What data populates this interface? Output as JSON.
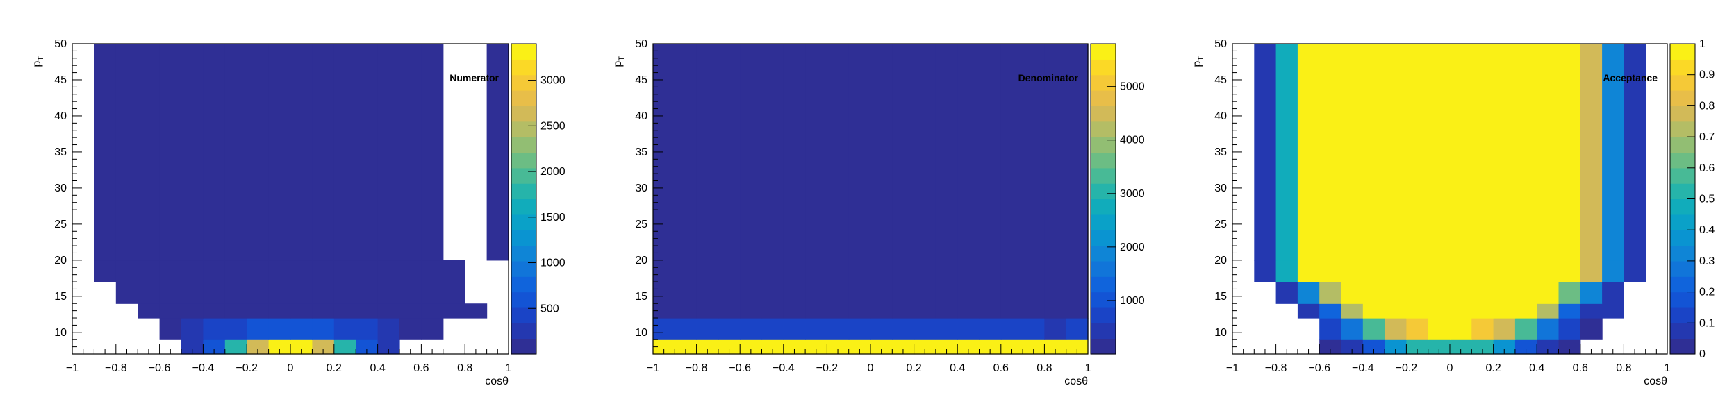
{
  "chart_data": [
    {
      "type": "heatmap",
      "title": "Numerator",
      "xlabel": "cosθ",
      "ylabel": "p_T",
      "xlim": [
        -1,
        1
      ],
      "ylim": [
        7,
        50
      ],
      "x_ticks": [
        "−1",
        "−0.8",
        "−0.6",
        "−0.4",
        "−0.2",
        "0",
        "0.2",
        "0.4",
        "0.6",
        "0.8",
        "1"
      ],
      "y_ticks": [
        "10",
        "15",
        "20",
        "25",
        "30",
        "35",
        "40",
        "45",
        "50"
      ],
      "x_bin_edges": [
        -1,
        -0.9,
        -0.8,
        -0.7,
        -0.6,
        -0.5,
        -0.4,
        -0.3,
        -0.2,
        -0.1,
        0,
        0.1,
        0.2,
        0.3,
        0.4,
        0.5,
        0.6,
        0.7,
        0.8,
        0.9,
        1
      ],
      "y_bin_edges": [
        7,
        9,
        12,
        14,
        17,
        20,
        50
      ],
      "z_range": [
        0,
        3400
      ],
      "colorbar_ticks": [
        {
          "value": 500,
          "label": "500"
        },
        {
          "value": 1000,
          "label": "1000"
        },
        {
          "value": 1500,
          "label": "1500"
        },
        {
          "value": 2000,
          "label": "2000"
        },
        {
          "value": 2500,
          "label": "2500"
        },
        {
          "value": 3000,
          "label": "3000"
        }
      ],
      "z": [
        [
          0,
          0,
          0,
          0,
          0,
          300,
          600,
          1700,
          2600,
          3400,
          3400,
          2600,
          1700,
          600,
          300,
          0,
          0,
          0,
          0,
          0
        ],
        [
          0,
          0,
          0,
          0,
          100,
          250,
          350,
          450,
          550,
          600,
          600,
          550,
          450,
          350,
          250,
          100,
          100,
          0,
          0,
          0
        ],
        [
          0,
          0,
          0,
          80,
          80,
          80,
          80,
          80,
          80,
          80,
          80,
          80,
          80,
          80,
          80,
          80,
          80,
          80,
          80,
          0
        ],
        [
          0,
          0,
          80,
          80,
          80,
          80,
          80,
          80,
          80,
          80,
          80,
          80,
          80,
          80,
          80,
          80,
          80,
          80,
          0,
          0
        ],
        [
          0,
          80,
          80,
          80,
          80,
          80,
          80,
          80,
          80,
          80,
          80,
          80,
          80,
          80,
          80,
          80,
          80,
          80,
          0,
          0
        ],
        [
          0,
          80,
          80,
          80,
          80,
          80,
          80,
          80,
          80,
          80,
          80,
          80,
          80,
          80,
          80,
          80,
          80,
          0,
          0,
          80
        ]
      ]
    },
    {
      "type": "heatmap",
      "title": "Denominator",
      "xlabel": "cosθ",
      "ylabel": "p_T",
      "xlim": [
        -1,
        1
      ],
      "ylim": [
        7,
        50
      ],
      "x_ticks": [
        "−1",
        "−0.8",
        "−0.6",
        "−0.4",
        "−0.2",
        "0",
        "0.2",
        "0.4",
        "0.6",
        "0.8",
        "1"
      ],
      "y_ticks": [
        "10",
        "15",
        "20",
        "25",
        "30",
        "35",
        "40",
        "45",
        "50"
      ],
      "x_bin_edges": [
        -1,
        -0.9,
        -0.8,
        -0.7,
        -0.6,
        -0.5,
        -0.4,
        -0.3,
        -0.2,
        -0.1,
        0,
        0.1,
        0.2,
        0.3,
        0.4,
        0.5,
        0.6,
        0.7,
        0.8,
        0.9,
        1
      ],
      "y_bin_edges": [
        7,
        9,
        12,
        50
      ],
      "z_range": [
        0,
        5800
      ],
      "colorbar_ticks": [
        {
          "value": 1000,
          "label": "1000"
        },
        {
          "value": 2000,
          "label": "2000"
        },
        {
          "value": 3000,
          "label": "3000"
        },
        {
          "value": 4000,
          "label": "4000"
        },
        {
          "value": 5000,
          "label": "5000"
        }
      ],
      "z": [
        [
          5800,
          5800,
          5800,
          5600,
          5800,
          5800,
          5800,
          5800,
          5800,
          5800,
          5800,
          5800,
          5800,
          5800,
          5800,
          5800,
          5800,
          5800,
          5800,
          5800
        ],
        [
          700,
          700,
          700,
          700,
          700,
          700,
          700,
          700,
          700,
          700,
          700,
          700,
          700,
          700,
          700,
          700,
          700,
          700,
          450,
          700
        ],
        [
          150,
          150,
          150,
          150,
          150,
          150,
          150,
          150,
          150,
          150,
          150,
          150,
          150,
          150,
          150,
          150,
          150,
          150,
          150,
          150
        ]
      ]
    },
    {
      "type": "heatmap",
      "title": "Acceptance",
      "xlabel": "cosθ",
      "ylabel": "p_T",
      "xlim": [
        -1,
        1
      ],
      "ylim": [
        7,
        50
      ],
      "x_ticks": [
        "−1",
        "−0.8",
        "−0.6",
        "−0.4",
        "−0.2",
        "0",
        "0.2",
        "0.4",
        "0.6",
        "0.8",
        "1"
      ],
      "y_ticks": [
        "10",
        "15",
        "20",
        "25",
        "30",
        "35",
        "40",
        "45",
        "50"
      ],
      "x_bin_edges": [
        -1,
        -0.9,
        -0.8,
        -0.7,
        -0.6,
        -0.5,
        -0.4,
        -0.3,
        -0.2,
        -0.1,
        0,
        0.1,
        0.2,
        0.3,
        0.4,
        0.5,
        0.6,
        0.7,
        0.8,
        0.9,
        1
      ],
      "y_bin_edges": [
        7,
        9,
        12,
        14,
        17,
        20,
        50
      ],
      "z_range": [
        0,
        1
      ],
      "colorbar_ticks": [
        {
          "value": 0,
          "label": "0"
        },
        {
          "value": 0.1,
          "label": "0.1"
        },
        {
          "value": 0.2,
          "label": "0.2"
        },
        {
          "value": 0.3,
          "label": "0.3"
        },
        {
          "value": 0.4,
          "label": "0.4"
        },
        {
          "value": 0.5,
          "label": "0.5"
        },
        {
          "value": 0.6,
          "label": "0.6"
        },
        {
          "value": 0.7,
          "label": "0.7"
        },
        {
          "value": 0.8,
          "label": "0.8"
        },
        {
          "value": 0.9,
          "label": "0.9"
        },
        {
          "value": 1,
          "label": "1"
        }
      ],
      "z": [
        [
          0,
          0,
          0,
          0,
          0.04,
          0.08,
          0.15,
          0.35,
          0.5,
          0.52,
          0.52,
          0.5,
          0.35,
          0.15,
          0.08,
          0.04,
          0,
          0,
          0,
          0
        ],
        [
          0,
          0,
          0,
          0,
          0.12,
          0.27,
          0.55,
          0.78,
          0.88,
          0.97,
          0.97,
          0.88,
          0.78,
          0.55,
          0.27,
          0.12,
          0.04,
          0,
          0,
          0
        ],
        [
          0,
          0,
          0,
          0.05,
          0.22,
          0.72,
          0.95,
          1,
          1,
          1,
          1,
          1,
          1,
          0.95,
          0.72,
          0.22,
          0.05,
          0.05,
          0,
          0
        ],
        [
          0,
          0,
          0.05,
          0.3,
          0.7,
          1,
          1,
          1,
          1,
          1,
          1,
          1,
          1,
          1,
          0.95,
          0.6,
          0.3,
          0.05,
          0,
          0
        ],
        [
          0,
          0.08,
          0.45,
          0.97,
          1,
          1,
          1,
          1,
          1,
          1,
          1,
          1,
          1,
          1,
          0.95,
          0.95,
          0.75,
          0.32,
          0.08,
          0
        ],
        [
          0,
          0.08,
          0.45,
          0.97,
          1,
          1,
          1,
          1,
          1,
          1,
          1,
          1,
          1,
          1,
          0.95,
          0.95,
          0.75,
          0.32,
          0.08,
          0
        ]
      ]
    }
  ]
}
